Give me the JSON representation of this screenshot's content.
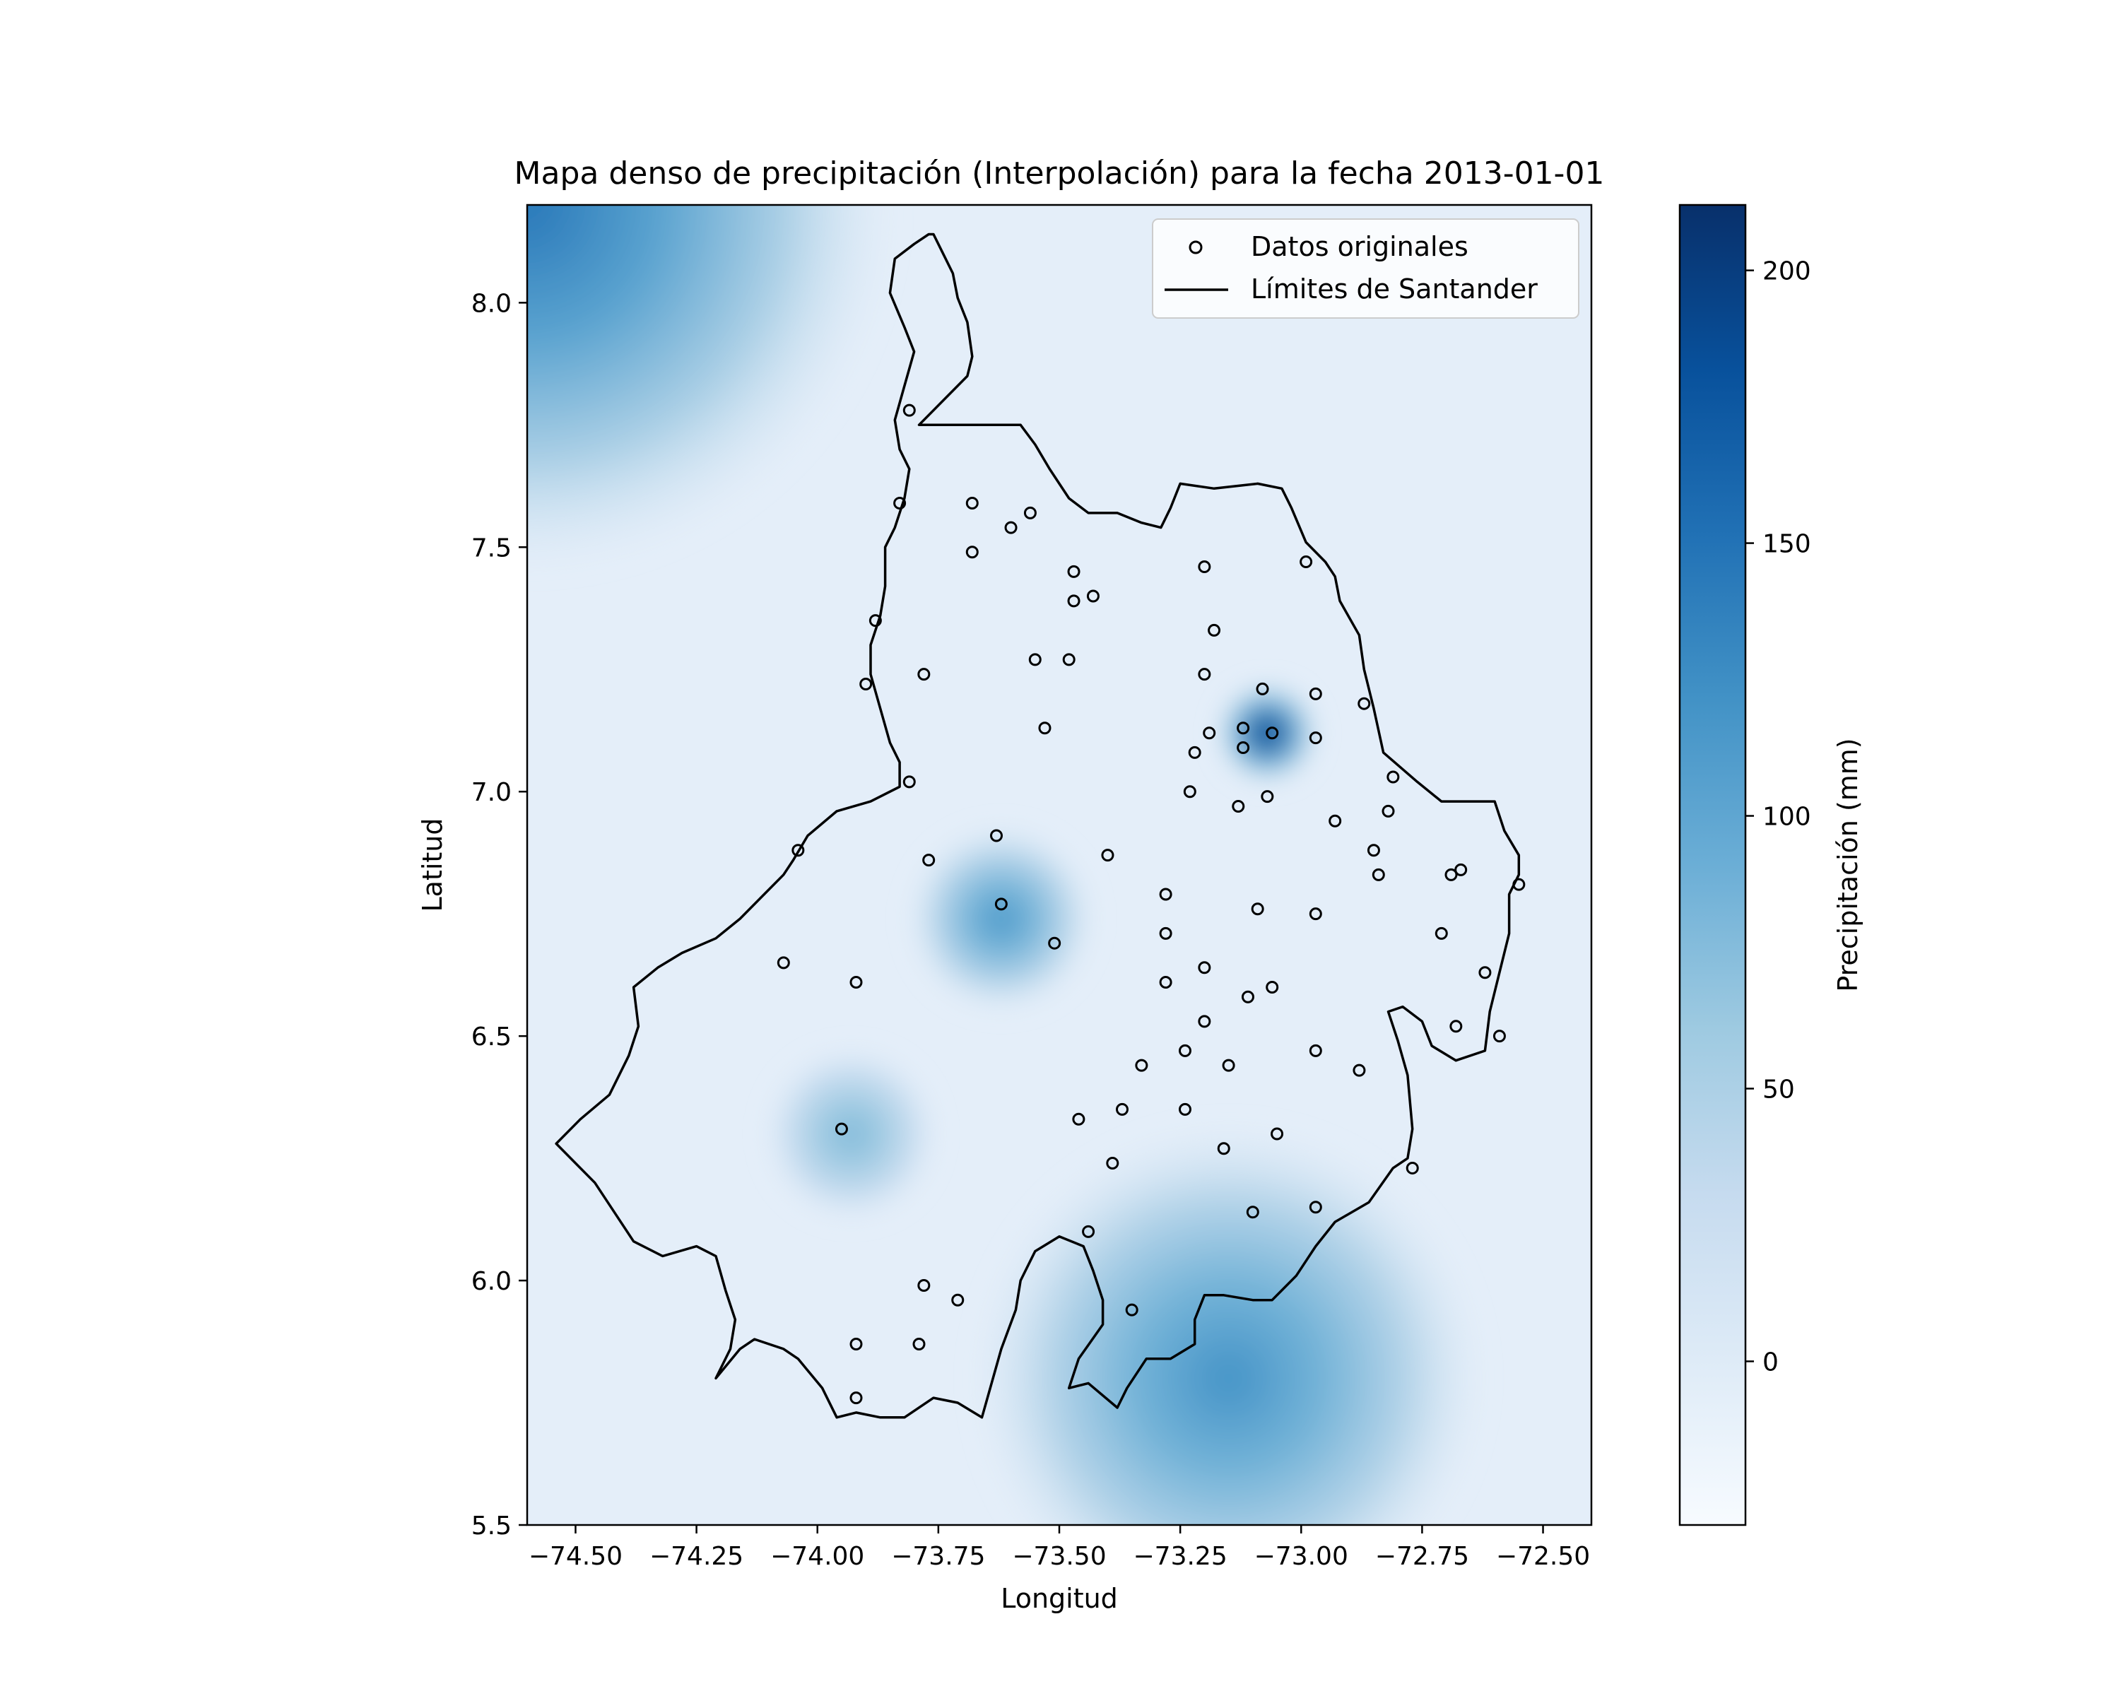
{
  "chart_data": {
    "type": "heatmap",
    "title": "Mapa denso de precipitación (Interpolación) para la fecha 2013-01-01",
    "xlabel": "Longitud",
    "ylabel": "Latitud",
    "xlim": [
      -74.6,
      -72.4
    ],
    "ylim": [
      5.5,
      8.2
    ],
    "xticks": [
      -74.5,
      -74.25,
      -74.0,
      -73.75,
      -73.5,
      -73.25,
      -73.0,
      -72.75,
      -72.5
    ],
    "xtick_labels": [
      "−74.50",
      "−74.25",
      "−74.00",
      "−73.75",
      "−73.50",
      "−73.25",
      "−73.00",
      "−72.75",
      "−72.50"
    ],
    "yticks": [
      5.5,
      6.0,
      6.5,
      7.0,
      7.5,
      8.0
    ],
    "ytick_labels": [
      "5.5",
      "6.0",
      "6.5",
      "7.0",
      "7.5",
      "8.0"
    ],
    "colorbar": {
      "label": "Precipitación (mm)",
      "range": [
        -30,
        212
      ],
      "ticks": [
        0,
        50,
        100,
        150,
        200
      ],
      "tick_labels": [
        "0",
        "50",
        "100",
        "150",
        "200"
      ],
      "colormap": "Blues"
    },
    "legend": {
      "placement": "upper right",
      "entries": [
        {
          "label": "Datos originales",
          "marker": "circle"
        },
        {
          "label": "Límites de Santander",
          "marker": "line"
        }
      ]
    },
    "grid": false,
    "field_peaks": [
      {
        "lon": -74.6,
        "lat": 8.2,
        "value": 145
      },
      {
        "lon": -73.07,
        "lat": 7.12,
        "value": 205
      },
      {
        "lon": -73.62,
        "lat": 6.74,
        "value": 115
      },
      {
        "lon": -73.93,
        "lat": 6.3,
        "value": 80
      },
      {
        "lon": -73.15,
        "lat": 5.8,
        "value": 120
      }
    ],
    "stations": [
      [
        -73.81,
        7.78
      ],
      [
        -73.83,
        7.59
      ],
      [
        -73.68,
        7.59
      ],
      [
        -73.56,
        7.57
      ],
      [
        -73.6,
        7.54
      ],
      [
        -73.68,
        7.49
      ],
      [
        -73.47,
        7.45
      ],
      [
        -73.43,
        7.4
      ],
      [
        -73.47,
        7.39
      ],
      [
        -73.88,
        7.35
      ],
      [
        -73.78,
        7.24
      ],
      [
        -73.9,
        7.22
      ],
      [
        -73.55,
        7.27
      ],
      [
        -73.48,
        7.27
      ],
      [
        -73.53,
        7.13
      ],
      [
        -73.2,
        7.46
      ],
      [
        -73.18,
        7.33
      ],
      [
        -73.2,
        7.24
      ],
      [
        -73.08,
        7.21
      ],
      [
        -73.06,
        7.12
      ],
      [
        -73.12,
        7.13
      ],
      [
        -73.19,
        7.12
      ],
      [
        -73.22,
        7.08
      ],
      [
        -73.12,
        7.09
      ],
      [
        -73.23,
        7.0
      ],
      [
        -73.07,
        6.99
      ],
      [
        -73.13,
        6.97
      ],
      [
        -72.99,
        7.47
      ],
      [
        -72.97,
        7.2
      ],
      [
        -72.97,
        7.11
      ],
      [
        -72.87,
        7.18
      ],
      [
        -72.93,
        6.94
      ],
      [
        -72.81,
        7.03
      ],
      [
        -72.82,
        6.96
      ],
      [
        -72.85,
        6.88
      ],
      [
        -72.84,
        6.83
      ],
      [
        -72.69,
        6.83
      ],
      [
        -72.67,
        6.84
      ],
      [
        -72.55,
        6.81
      ],
      [
        -73.81,
        7.02
      ],
      [
        -73.63,
        6.91
      ],
      [
        -73.77,
        6.86
      ],
      [
        -73.4,
        6.87
      ],
      [
        -74.04,
        6.88
      ],
      [
        -73.62,
        6.77
      ],
      [
        -73.51,
        6.69
      ],
      [
        -74.07,
        6.65
      ],
      [
        -73.92,
        6.61
      ],
      [
        -73.28,
        6.79
      ],
      [
        -73.28,
        6.71
      ],
      [
        -73.09,
        6.76
      ],
      [
        -72.97,
        6.75
      ],
      [
        -72.71,
        6.71
      ],
      [
        -72.62,
        6.63
      ],
      [
        -73.2,
        6.64
      ],
      [
        -73.28,
        6.61
      ],
      [
        -73.06,
        6.6
      ],
      [
        -73.11,
        6.58
      ],
      [
        -73.2,
        6.53
      ],
      [
        -72.68,
        6.52
      ],
      [
        -72.59,
        6.5
      ],
      [
        -73.24,
        6.47
      ],
      [
        -73.33,
        6.44
      ],
      [
        -73.15,
        6.44
      ],
      [
        -72.97,
        6.47
      ],
      [
        -72.88,
        6.43
      ],
      [
        -73.37,
        6.35
      ],
      [
        -73.24,
        6.35
      ],
      [
        -73.46,
        6.33
      ],
      [
        -73.95,
        6.31
      ],
      [
        -73.05,
        6.3
      ],
      [
        -73.16,
        6.27
      ],
      [
        -73.39,
        6.24
      ],
      [
        -72.77,
        6.23
      ],
      [
        -73.1,
        6.14
      ],
      [
        -72.97,
        6.15
      ],
      [
        -73.44,
        6.1
      ],
      [
        -73.78,
        5.99
      ],
      [
        -73.71,
        5.96
      ],
      [
        -73.35,
        5.94
      ],
      [
        -73.92,
        5.87
      ],
      [
        -73.79,
        5.87
      ],
      [
        -73.92,
        5.76
      ]
    ],
    "boundary": [
      [
        -73.76,
        8.14
      ],
      [
        -73.74,
        8.1
      ],
      [
        -73.72,
        8.06
      ],
      [
        -73.71,
        8.01
      ],
      [
        -73.69,
        7.96
      ],
      [
        -73.68,
        7.89
      ],
      [
        -73.69,
        7.85
      ],
      [
        -73.72,
        7.82
      ],
      [
        -73.79,
        7.75
      ],
      [
        -73.66,
        7.75
      ],
      [
        -73.58,
        7.75
      ],
      [
        -73.55,
        7.71
      ],
      [
        -73.52,
        7.66
      ],
      [
        -73.48,
        7.6
      ],
      [
        -73.44,
        7.57
      ],
      [
        -73.38,
        7.57
      ],
      [
        -73.33,
        7.55
      ],
      [
        -73.29,
        7.54
      ],
      [
        -73.27,
        7.58
      ],
      [
        -73.25,
        7.63
      ],
      [
        -73.18,
        7.62
      ],
      [
        -73.09,
        7.63
      ],
      [
        -73.04,
        7.62
      ],
      [
        -73.02,
        7.58
      ],
      [
        -72.99,
        7.51
      ],
      [
        -72.95,
        7.47
      ],
      [
        -72.93,
        7.44
      ],
      [
        -72.92,
        7.39
      ],
      [
        -72.88,
        7.32
      ],
      [
        -72.87,
        7.25
      ],
      [
        -72.85,
        7.17
      ],
      [
        -72.83,
        7.08
      ],
      [
        -72.76,
        7.02
      ],
      [
        -72.71,
        6.98
      ],
      [
        -72.67,
        6.98
      ],
      [
        -72.6,
        6.98
      ],
      [
        -72.58,
        6.92
      ],
      [
        -72.55,
        6.87
      ],
      [
        -72.55,
        6.83
      ],
      [
        -72.57,
        6.79
      ],
      [
        -72.57,
        6.71
      ],
      [
        -72.59,
        6.63
      ],
      [
        -72.61,
        6.55
      ],
      [
        -72.62,
        6.47
      ],
      [
        -72.68,
        6.45
      ],
      [
        -72.73,
        6.48
      ],
      [
        -72.75,
        6.53
      ],
      [
        -72.79,
        6.56
      ],
      [
        -72.82,
        6.55
      ],
      [
        -72.8,
        6.49
      ],
      [
        -72.78,
        6.42
      ],
      [
        -72.77,
        6.31
      ],
      [
        -72.78,
        6.25
      ],
      [
        -72.81,
        6.23
      ],
      [
        -72.86,
        6.16
      ],
      [
        -72.93,
        6.12
      ],
      [
        -72.97,
        6.07
      ],
      [
        -73.01,
        6.01
      ],
      [
        -73.04,
        5.98
      ],
      [
        -73.06,
        5.96
      ],
      [
        -73.1,
        5.96
      ],
      [
        -73.16,
        5.97
      ],
      [
        -73.2,
        5.97
      ],
      [
        -73.22,
        5.92
      ],
      [
        -73.22,
        5.87
      ],
      [
        -73.27,
        5.84
      ],
      [
        -73.32,
        5.84
      ],
      [
        -73.36,
        5.78
      ],
      [
        -73.38,
        5.74
      ],
      [
        -73.44,
        5.79
      ],
      [
        -73.48,
        5.78
      ],
      [
        -73.46,
        5.84
      ],
      [
        -73.41,
        5.91
      ],
      [
        -73.41,
        5.96
      ],
      [
        -73.43,
        6.02
      ],
      [
        -73.45,
        6.07
      ],
      [
        -73.5,
        6.09
      ],
      [
        -73.55,
        6.06
      ],
      [
        -73.58,
        6.0
      ],
      [
        -73.59,
        5.94
      ],
      [
        -73.62,
        5.86
      ],
      [
        -73.64,
        5.79
      ],
      [
        -73.66,
        5.72
      ],
      [
        -73.71,
        5.75
      ],
      [
        -73.76,
        5.76
      ],
      [
        -73.82,
        5.72
      ],
      [
        -73.87,
        5.72
      ],
      [
        -73.92,
        5.73
      ],
      [
        -73.96,
        5.72
      ],
      [
        -73.99,
        5.78
      ],
      [
        -74.04,
        5.84
      ],
      [
        -74.07,
        5.86
      ],
      [
        -74.13,
        5.88
      ],
      [
        -74.16,
        5.86
      ],
      [
        -74.21,
        5.8
      ],
      [
        -74.18,
        5.86
      ],
      [
        -74.17,
        5.92
      ],
      [
        -74.19,
        5.98
      ],
      [
        -74.21,
        6.05
      ],
      [
        -74.25,
        6.07
      ],
      [
        -74.32,
        6.05
      ],
      [
        -74.38,
        6.08
      ],
      [
        -74.42,
        6.14
      ],
      [
        -74.46,
        6.2
      ],
      [
        -74.54,
        6.28
      ],
      [
        -74.49,
        6.33
      ],
      [
        -74.43,
        6.38
      ],
      [
        -74.39,
        6.46
      ],
      [
        -74.37,
        6.52
      ],
      [
        -74.38,
        6.6
      ],
      [
        -74.33,
        6.64
      ],
      [
        -74.28,
        6.67
      ],
      [
        -74.21,
        6.7
      ],
      [
        -74.16,
        6.74
      ],
      [
        -74.11,
        6.79
      ],
      [
        -74.07,
        6.83
      ],
      [
        -74.05,
        6.86
      ],
      [
        -74.02,
        6.91
      ],
      [
        -73.96,
        6.96
      ],
      [
        -73.89,
        6.98
      ],
      [
        -73.83,
        7.01
      ],
      [
        -73.83,
        7.06
      ],
      [
        -73.85,
        7.1
      ],
      [
        -73.87,
        7.17
      ],
      [
        -73.89,
        7.24
      ],
      [
        -73.89,
        7.3
      ],
      [
        -73.87,
        7.36
      ],
      [
        -73.86,
        7.42
      ],
      [
        -73.86,
        7.5
      ],
      [
        -73.84,
        7.54
      ],
      [
        -73.82,
        7.6
      ],
      [
        -73.81,
        7.66
      ],
      [
        -73.83,
        7.7
      ],
      [
        -73.84,
        7.76
      ],
      [
        -73.82,
        7.83
      ],
      [
        -73.8,
        7.9
      ],
      [
        -73.82,
        7.95
      ],
      [
        -73.85,
        8.02
      ],
      [
        -73.84,
        8.09
      ],
      [
        -73.8,
        8.12
      ],
      [
        -73.77,
        8.14
      ],
      [
        -73.76,
        8.14
      ]
    ]
  }
}
